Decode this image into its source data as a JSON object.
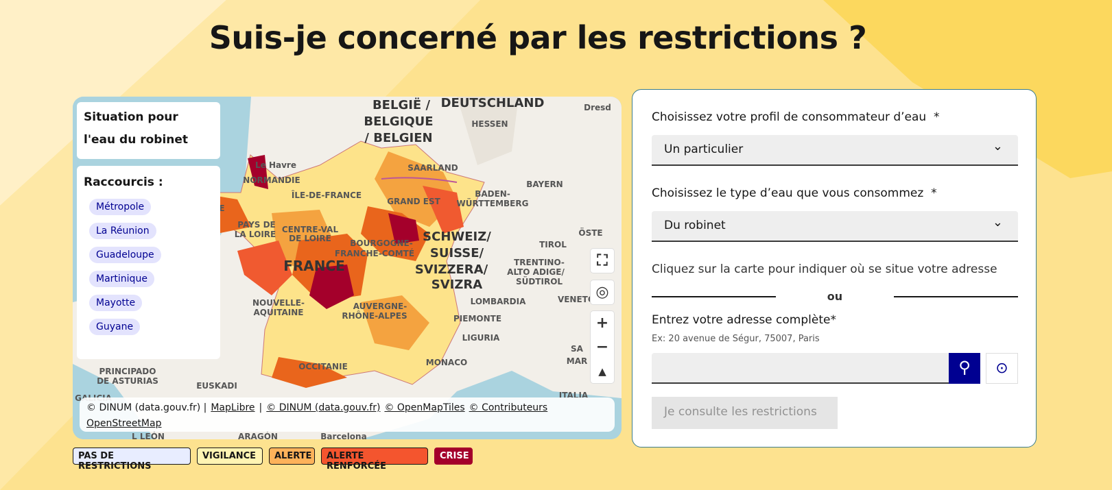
{
  "header": {
    "title": "Suis-je concerné par les restrictions ?"
  },
  "map": {
    "panel_title": "Situation pour l'eau du robinet",
    "shortcuts_title": "Raccourcis :",
    "shortcuts": [
      "Métropole",
      "La Réunion",
      "Guadeloupe",
      "Martinique",
      "Mayotte",
      "Guyane"
    ],
    "labels": [
      "BELGIË /",
      "BELGIQUE",
      "/ BELGIEN",
      "DEUTSCHLAND",
      "Dresd",
      "HESSEN",
      "Le Havre",
      "NORMANDIE",
      "ÎLE-DE-FRANCE",
      "SAARLAND",
      "GRAND EST",
      "BADEN-",
      "WÜRTTEMBERG",
      "BAYERN",
      "BRETAGNE",
      "PAYS DE",
      "LA LOIRE",
      "CENTRE-VAL",
      "DE LOIRE",
      "BOURGOGNE-",
      "FRANCHE-COMTÉ",
      "FRANCE",
      "SCHWEIZ/",
      "SUISSE/",
      "SVIZZERA/",
      "SVIZRA",
      "ÖSTE",
      "TIROL",
      "TRENTINO-",
      "ALTO ADIGE/",
      "SÜDTIROL",
      "VENETO",
      "LOMBARDIA",
      "NOUVELLE-",
      "AQUITAINE",
      "AUVERGNE-",
      "RHÔNE-ALPES",
      "PIEMONTE",
      "LIGURIA",
      "MONACO",
      "OCCITANIE",
      "PRINCIPADO",
      "DE ASTURIAS",
      "EUSKADI",
      "GALICIA",
      "L LEÓN",
      "ARAGÓN",
      "Barcelona",
      "SA",
      "MAR",
      "ITALIA"
    ],
    "attribution": [
      "© DINUM (data.gouv.fr) |",
      "MapLibre",
      "|",
      "© DINUM (data.gouv.fr)",
      "© OpenMapTiles",
      "© Contributeurs",
      "OpenStreetMap"
    ]
  },
  "legend": [
    "PAS DE RESTRICTIONS",
    "VIGILANCE",
    "ALERTE",
    "ALERTE RENFORCÉE",
    "CRISE"
  ],
  "form": {
    "profile_label": "Choisissez votre profil de consommateur d’eau",
    "required": "*",
    "profile_value": "Un particulier",
    "water_label": "Choisissez le type d’eau que vous consommez",
    "water_value": "Du robinet",
    "map_hint": "Cliquez sur la carte pour indiquer où se situe votre adresse",
    "or": "ou",
    "address_label": "Entrez votre adresse complète",
    "address_hint": "Ex: 20 avenue de Ségur, 75007, Paris",
    "submit": "Je consulte les restrictions"
  }
}
